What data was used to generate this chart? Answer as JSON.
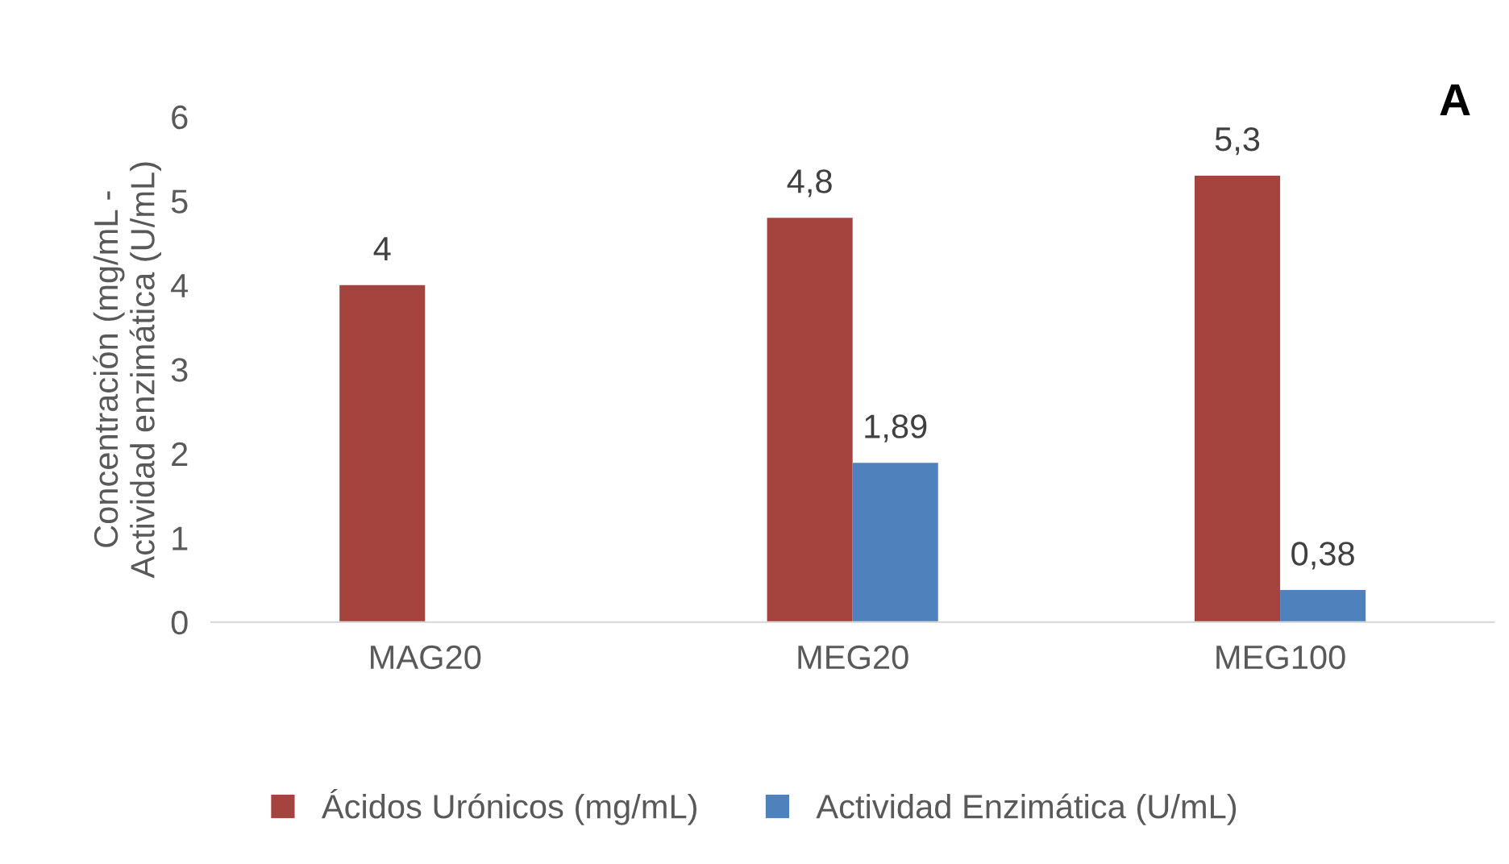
{
  "chart_data": {
    "type": "bar",
    "ylabel": "Concentración (mg/mL -\nActividad enzimática (U/mL)",
    "annotations": [
      "A"
    ],
    "categories": [
      "MAG20",
      "MEG20",
      "MEG100"
    ],
    "series": [
      {
        "name": "Ácidos Urónicos (mg/mL)",
        "color": "#a5433f",
        "values": [
          4,
          4.8,
          5.3
        ],
        "value_labels": [
          "4",
          "4,8",
          "5,3"
        ]
      },
      {
        "name": "Actividad Enzimática (U/mL)",
        "color": "#4f81bd",
        "values": [
          null,
          1.89,
          0.38
        ],
        "value_labels": [
          null,
          "1,89",
          "0,38"
        ]
      }
    ],
    "ylim": [
      0,
      6
    ],
    "yticks": [
      0,
      1,
      2,
      3,
      4,
      5,
      6
    ],
    "grid": false,
    "legend": "bottom"
  }
}
